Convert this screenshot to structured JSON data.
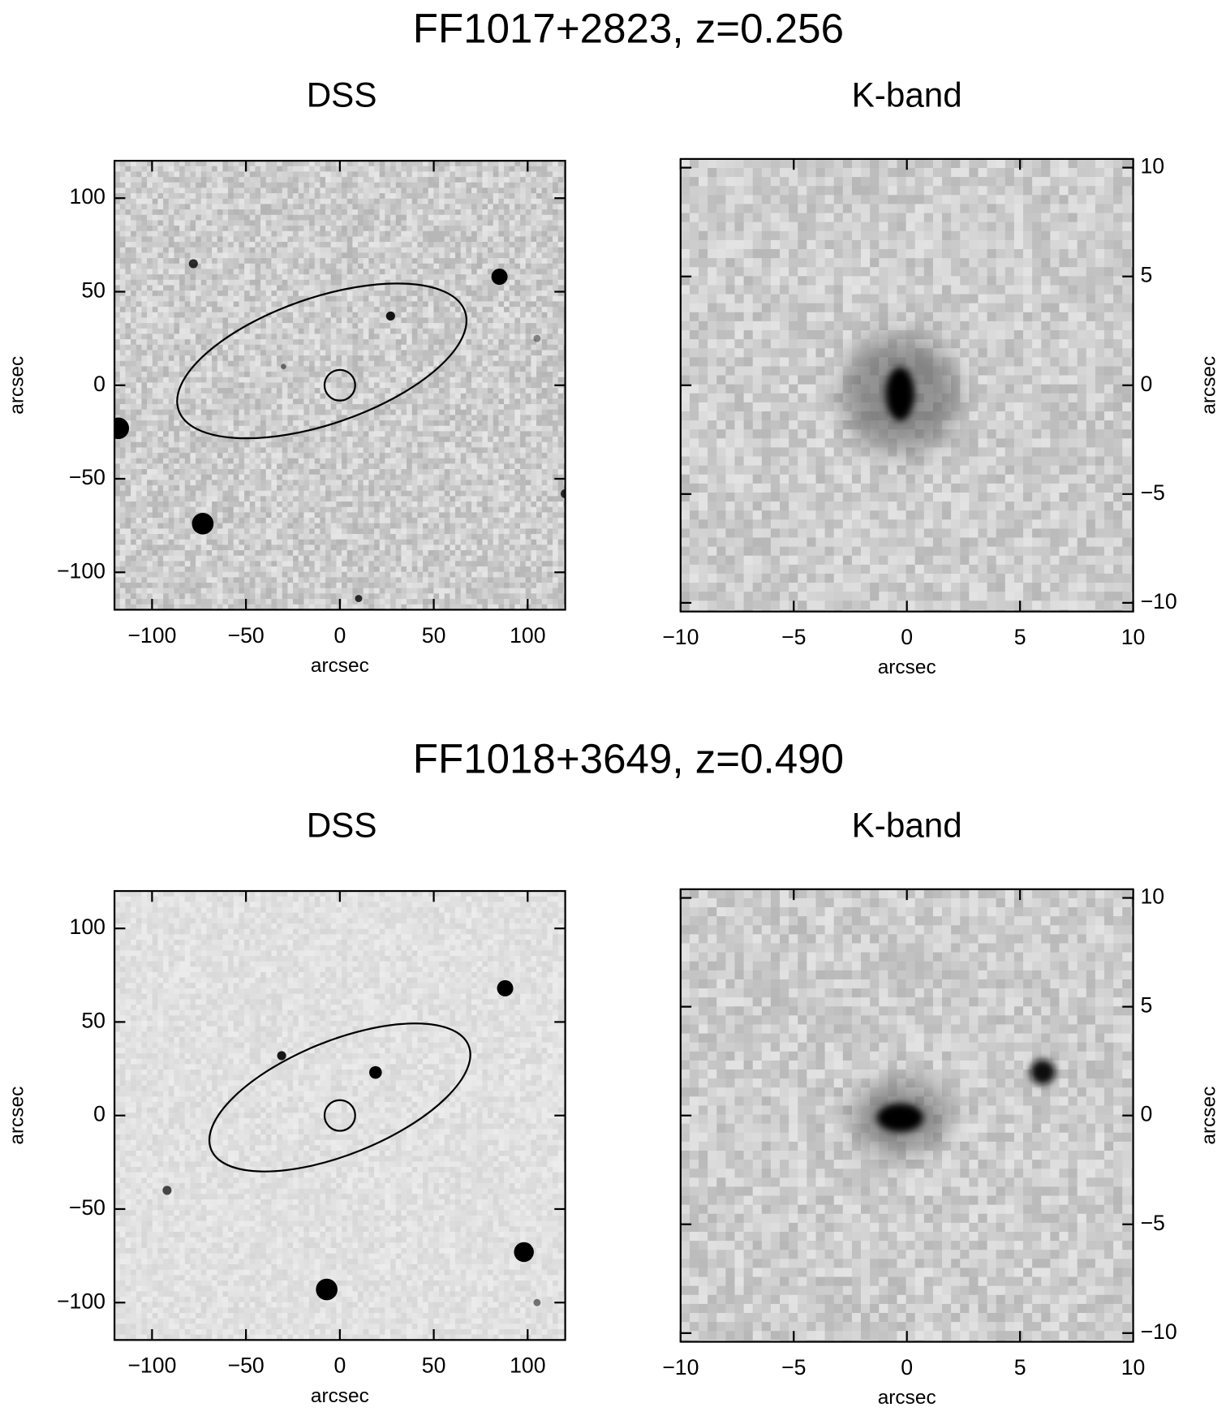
{
  "figures": [
    {
      "title": "FF1017+2823, z=0.256",
      "panels": [
        {
          "title": "DSS",
          "xlabel": "arcsec",
          "ylabel": "arcsec",
          "y_axis_position": "left",
          "xlim": [
            -120,
            120
          ],
          "ylim": [
            -120,
            120
          ],
          "xticks": [
            {
              "value": -100,
              "label": "−100"
            },
            {
              "value": -50,
              "label": "−50"
            },
            0,
            50,
            100
          ],
          "yticks": [
            {
              "value": -100,
              "label": "−100"
            },
            {
              "value": -50,
              "label": "−50"
            },
            0,
            50,
            100
          ]
        },
        {
          "title": "K-band",
          "xlabel": "arcsec",
          "ylabel": "arcsec",
          "y_axis_position": "right",
          "xlim": [
            -10,
            10
          ],
          "ylim": [
            -10.4,
            10.4
          ],
          "xticks": [
            {
              "value": -10,
              "label": "−10"
            },
            {
              "value": -5,
              "label": "−5"
            },
            0,
            5,
            10
          ],
          "yticks": [
            {
              "value": -10,
              "label": "−10"
            },
            {
              "value": -5,
              "label": "−5"
            },
            0,
            5,
            10
          ]
        }
      ]
    },
    {
      "title": "FF1018+3649, z=0.490",
      "panels": [
        {
          "title": "DSS",
          "xlabel": "arcsec",
          "ylabel": "arcsec",
          "y_axis_position": "left",
          "xlim": [
            -120,
            120
          ],
          "ylim": [
            -120,
            120
          ],
          "xticks": [
            {
              "value": -100,
              "label": "−100"
            },
            {
              "value": -50,
              "label": "−50"
            },
            0,
            50,
            100
          ],
          "yticks": [
            {
              "value": -100,
              "label": "−100"
            },
            {
              "value": -50,
              "label": "−50"
            },
            0,
            50,
            100
          ]
        },
        {
          "title": "K-band",
          "xlabel": "arcsec",
          "ylabel": "arcsec",
          "y_axis_position": "right",
          "xlim": [
            -10,
            10
          ],
          "ylim": [
            -10.4,
            10.4
          ],
          "xticks": [
            {
              "value": -10,
              "label": "−10"
            },
            {
              "value": -5,
              "label": "−5"
            },
            0,
            5,
            10
          ],
          "yticks": [
            {
              "value": -10,
              "label": "−10"
            },
            {
              "value": -5,
              "label": "−5"
            },
            0,
            5,
            10
          ]
        }
      ]
    }
  ]
}
